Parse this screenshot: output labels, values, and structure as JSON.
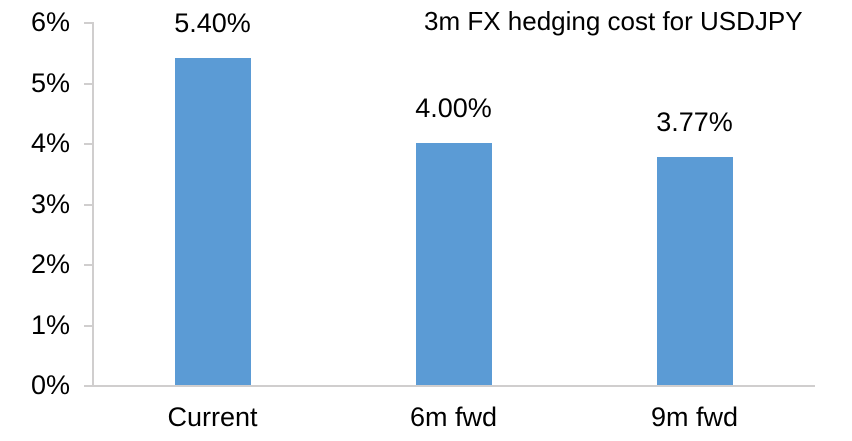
{
  "chart_data": {
    "type": "bar",
    "title": "3m FX hedging cost for USDJPY",
    "categories": [
      "Current",
      "6m fwd",
      "9m fwd"
    ],
    "values": [
      5.4,
      4.0,
      3.77
    ],
    "data_labels": [
      "5.40%",
      "4.00%",
      "3.77%"
    ],
    "xlabel": "",
    "ylabel": "",
    "ylim": [
      0,
      6
    ],
    "y_ticks": [
      {
        "value": 6,
        "label": "6%"
      },
      {
        "value": 5,
        "label": "5%"
      },
      {
        "value": 4,
        "label": "4%"
      },
      {
        "value": 3,
        "label": "3%"
      },
      {
        "value": 2,
        "label": "2%"
      },
      {
        "value": 1,
        "label": "1%"
      },
      {
        "value": 0,
        "label": "0%"
      }
    ],
    "grid": false,
    "legend": "none",
    "colors": {
      "bar": "#5B9BD5",
      "axis": "#D0CECE",
      "text": "#000000",
      "background": "#FFFFFF"
    }
  }
}
